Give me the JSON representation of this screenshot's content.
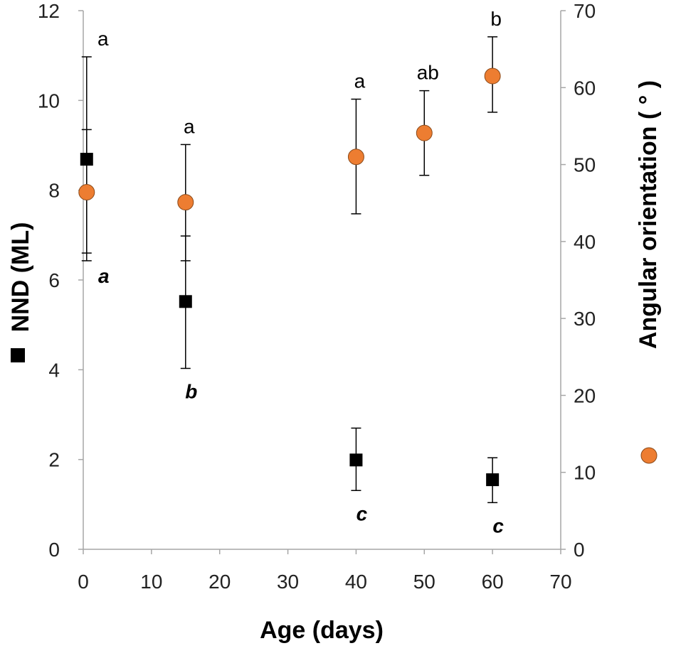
{
  "chart_data": {
    "type": "scatter",
    "title": "",
    "xlabel": "Age (days)",
    "ylabel": "NND (ML)",
    "y2label": "Angular orientation ( ° )",
    "xlim": [
      0,
      70
    ],
    "ylim": [
      0,
      12
    ],
    "y2lim": [
      0,
      70
    ],
    "xticks": [
      "0",
      "10",
      "20",
      "30",
      "40",
      "50",
      "60",
      "70"
    ],
    "yticks": [
      "0",
      "2",
      "4",
      "6",
      "8",
      "10",
      "12"
    ],
    "y2ticks": [
      "0",
      "10",
      "20",
      "30",
      "40",
      "50",
      "60",
      "70"
    ],
    "grid": false,
    "colors": {
      "nnd": "#000000",
      "angle": "#ED7D31",
      "axis": "#A6A6A6"
    },
    "series": [
      {
        "name": "NND",
        "marker": "square",
        "axis": "left",
        "x": [
          0.5,
          15,
          40,
          60
        ],
        "y": [
          8.69,
          5.52,
          1.99,
          1.55
        ],
        "err_high": [
          9.35,
          6.98,
          2.7,
          2.04
        ],
        "err_low": [
          6.6,
          4.03,
          1.31,
          1.04
        ],
        "labels": [
          "a",
          "b",
          "c",
          "c"
        ]
      },
      {
        "name": "Angular orientation",
        "marker": "circle",
        "axis": "right",
        "x": [
          0.5,
          15,
          40,
          50,
          60
        ],
        "y": [
          46.4,
          45.1,
          51.0,
          54.1,
          61.5
        ],
        "err_high": [
          64.0,
          52.6,
          58.5,
          59.6,
          66.6
        ],
        "err_low": [
          37.5,
          37.5,
          43.6,
          48.6,
          56.8
        ],
        "labels": [
          "a",
          "a",
          "a",
          "ab",
          "b"
        ]
      }
    ]
  }
}
